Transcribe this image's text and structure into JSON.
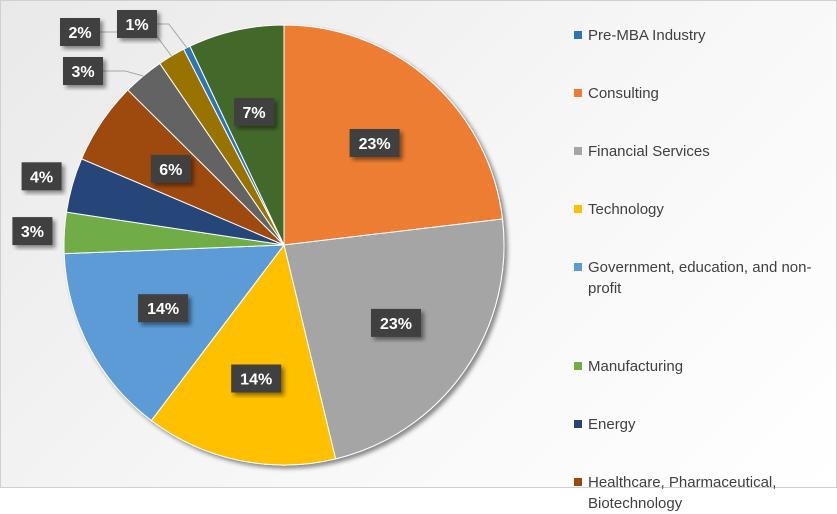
{
  "chart_data": {
    "type": "pie",
    "title": "",
    "start_angle_deg": 0,
    "direction": "clockwise",
    "slices": [
      {
        "name": "Consulting",
        "value": 23,
        "label": "23%",
        "color": "#ED7D31"
      },
      {
        "name": "Financial Services",
        "value": 23,
        "label": "23%",
        "color": "#A5A5A5"
      },
      {
        "name": "Technology",
        "value": 14,
        "label": "14%",
        "color": "#FFC000"
      },
      {
        "name": "Government, education, and non-profit",
        "value": 14,
        "label": "14%",
        "color": "#5B9BD5"
      },
      {
        "name": "Manufacturing",
        "value": 3,
        "label": "3%",
        "color": "#70AD47"
      },
      {
        "name": "Energy",
        "value": 4,
        "label": "4%",
        "color": "#264478"
      },
      {
        "name": "Healthcare, Pharmaceutical, Biotechnology",
        "value": 6,
        "label": "6%",
        "color": "#9E480E"
      },
      {
        "name": "",
        "value": 3,
        "label": "3%",
        "color": "#636363"
      },
      {
        "name": "",
        "value": 2,
        "label": "2%",
        "color": "#997300"
      },
      {
        "name": "Pre-MBA Industry",
        "value": 0.5,
        "label": "1%",
        "color": "#2E75B6"
      },
      {
        "name": "",
        "value": 7,
        "label": "7%",
        "color": "#43682B"
      }
    ],
    "legend": {
      "position": "right",
      "entries": [
        {
          "label": "Pre-MBA Industry",
          "color": "#2E75B6"
        },
        {
          "label": "Consulting",
          "color": "#ED7D31"
        },
        {
          "label": "Financial Services",
          "color": "#A5A5A5"
        },
        {
          "label": "Technology",
          "color": "#FFC000"
        },
        {
          "label": "Government, education, and non-profit",
          "color": "#5B9BD5"
        },
        {
          "label": "Manufacturing",
          "color": "#70AD47"
        },
        {
          "label": "Energy",
          "color": "#264478"
        },
        {
          "label": "Healthcare, Pharmaceutical, Biotechnology",
          "color": "#9E480E"
        }
      ]
    }
  }
}
